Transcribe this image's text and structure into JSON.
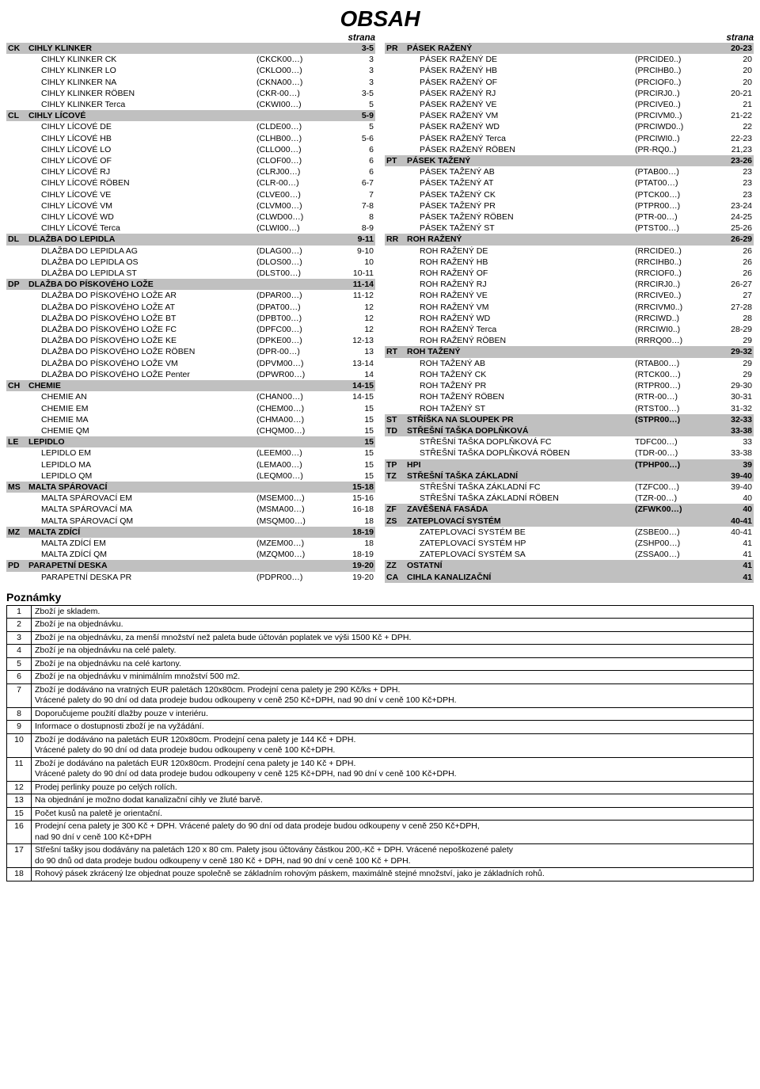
{
  "title": "OBSAH",
  "strana_label": "strana",
  "left": [
    {
      "t": "s",
      "code": "CK",
      "name": "CIHLY KLINKER",
      "ref": "",
      "page": "3-5"
    },
    {
      "t": "i",
      "name": "CIHLY KLINKER CK",
      "ref": "(CKCK00…)",
      "page": "3"
    },
    {
      "t": "i",
      "name": "CIHLY KLINKER LO",
      "ref": "(CKLO00…)",
      "page": "3"
    },
    {
      "t": "i",
      "name": "CIHLY KLINKER NA",
      "ref": "(CKNA00…)",
      "page": "3"
    },
    {
      "t": "i",
      "name": "CIHLY KLINKER RÖBEN",
      "ref": "(CKR-00…)",
      "page": "3-5"
    },
    {
      "t": "i",
      "name": "CIHLY KLINKER Terca",
      "ref": "(CKWI00…)",
      "page": "5"
    },
    {
      "t": "s",
      "code": "CL",
      "name": "CIHLY LÍCOVÉ",
      "ref": "",
      "page": "5-9"
    },
    {
      "t": "i",
      "name": "CIHLY LÍCOVÉ DE",
      "ref": "(CLDE00…)",
      "page": "5"
    },
    {
      "t": "i",
      "name": "CIHLY LÍCOVÉ HB",
      "ref": "(CLHB00…)",
      "page": "5-6"
    },
    {
      "t": "i",
      "name": "CIHLY LÍCOVÉ LO",
      "ref": "(CLLO00…)",
      "page": "6"
    },
    {
      "t": "i",
      "name": "CIHLY LÍCOVÉ OF",
      "ref": "(CLOF00…)",
      "page": "6"
    },
    {
      "t": "i",
      "name": "CIHLY LÍCOVÉ RJ",
      "ref": "(CLRJ00…)",
      "page": "6"
    },
    {
      "t": "i",
      "name": "CIHLY LÍCOVÉ RÖBEN",
      "ref": "(CLR-00…)",
      "page": "6-7"
    },
    {
      "t": "i",
      "name": "CIHLY LÍCOVÉ VE",
      "ref": "(CLVE00…)",
      "page": "7"
    },
    {
      "t": "i",
      "name": "CIHLY LÍCOVÉ VM",
      "ref": "(CLVM00…)",
      "page": "7-8"
    },
    {
      "t": "i",
      "name": "CIHLY LÍCOVÉ WD",
      "ref": "(CLWD00…)",
      "page": "8"
    },
    {
      "t": "i",
      "name": "CIHLY LÍCOVÉ Terca",
      "ref": "(CLWI00…)",
      "page": "8-9"
    },
    {
      "t": "s",
      "code": "DL",
      "name": "DLAŽBA DO LEPIDLA",
      "ref": "",
      "page": "9-11"
    },
    {
      "t": "i",
      "name": "DLAŽBA DO LEPIDLA AG",
      "ref": "(DLAG00…)",
      "page": "9-10"
    },
    {
      "t": "i",
      "name": "DLAŽBA DO LEPIDLA OS",
      "ref": "(DLOS00…)",
      "page": "10"
    },
    {
      "t": "i",
      "name": "DLAŽBA DO LEPIDLA ST",
      "ref": "(DLST00…)",
      "page": "10-11"
    },
    {
      "t": "s",
      "code": "DP",
      "name": "DLAŽBA DO PÍSKOVÉHO LOŽE",
      "ref": "",
      "page": "11-14"
    },
    {
      "t": "i",
      "name": "DLAŽBA DO PÍSKOVÉHO LOŽE AR",
      "ref": "(DPAR00…)",
      "page": "11-12"
    },
    {
      "t": "i",
      "name": "DLAŽBA DO PÍSKOVÉHO LOŽE AT",
      "ref": "(DPAT00…)",
      "page": "12"
    },
    {
      "t": "i",
      "name": "DLAŽBA DO PÍSKOVÉHO LOŽE BT",
      "ref": "(DPBT00…)",
      "page": "12"
    },
    {
      "t": "i",
      "name": "DLAŽBA DO PÍSKOVÉHO LOŽE FC",
      "ref": "(DPFC00…)",
      "page": "12"
    },
    {
      "t": "i",
      "name": "DLAŽBA DO PÍSKOVÉHO LOŽE KE",
      "ref": "(DPKE00…)",
      "page": "12-13"
    },
    {
      "t": "i",
      "name": "DLAŽBA DO PÍSKOVÉHO LOŽE RÖBEN",
      "ref": "(DPR-00…)",
      "page": "13"
    },
    {
      "t": "i",
      "name": "DLAŽBA DO PÍSKOVÉHO LOŽE VM",
      "ref": "(DPVM00…)",
      "page": "13-14"
    },
    {
      "t": "i",
      "name": "DLAŽBA DO PÍSKOVÉHO LOŽE Penter",
      "ref": "(DPWR00…)",
      "page": "14"
    },
    {
      "t": "s",
      "code": "CH",
      "name": "CHEMIE",
      "ref": "",
      "page": "14-15"
    },
    {
      "t": "i",
      "name": "CHEMIE AN",
      "ref": "(CHAN00…)",
      "page": "14-15"
    },
    {
      "t": "i",
      "name": "CHEMIE EM",
      "ref": "(CHEM00…)",
      "page": "15"
    },
    {
      "t": "i",
      "name": "CHEMIE MA",
      "ref": "(CHMA00…)",
      "page": "15"
    },
    {
      "t": "i",
      "name": "CHEMIE QM",
      "ref": "(CHQM00…)",
      "page": "15"
    },
    {
      "t": "s",
      "code": "LE",
      "name": "LEPIDLO",
      "ref": "",
      "page": "15"
    },
    {
      "t": "i",
      "name": "LEPIDLO EM",
      "ref": "(LEEM00…)",
      "page": "15"
    },
    {
      "t": "i",
      "name": "LEPIDLO MA",
      "ref": "(LEMA00…)",
      "page": "15"
    },
    {
      "t": "i",
      "name": "LEPIDLO QM",
      "ref": "(LEQM00…)",
      "page": "15"
    },
    {
      "t": "s",
      "code": "MS",
      "name": "MALTA SPÁROVACÍ",
      "ref": "",
      "page": "15-18"
    },
    {
      "t": "i",
      "name": "MALTA SPÁROVACÍ EM",
      "ref": "(MSEM00…)",
      "page": "15-16"
    },
    {
      "t": "i",
      "name": "MALTA SPÁROVACÍ MA",
      "ref": "(MSMA00…)",
      "page": "16-18"
    },
    {
      "t": "i",
      "name": "MALTA SPÁROVACÍ QM",
      "ref": "(MSQM00…)",
      "page": "18"
    },
    {
      "t": "s",
      "code": "MZ",
      "name": "MALTA ZDÍCÍ",
      "ref": "",
      "page": "18-19"
    },
    {
      "t": "i",
      "name": "MALTA ZDÍCÍ EM",
      "ref": "(MZEM00…)",
      "page": "18"
    },
    {
      "t": "i",
      "name": "MALTA ZDÍCÍ QM",
      "ref": "(MZQM00…)",
      "page": "18-19"
    },
    {
      "t": "s",
      "code": "PD",
      "name": "PARAPETNÍ DESKA",
      "ref": "",
      "page": "19-20"
    },
    {
      "t": "i",
      "name": "PARAPETNÍ DESKA PR",
      "ref": "(PDPR00…)",
      "page": "19-20"
    }
  ],
  "right": [
    {
      "t": "s",
      "code": "PR",
      "name": "PÁSEK RAŽENÝ",
      "ref": "",
      "page": "20-23"
    },
    {
      "t": "i",
      "name": "PÁSEK RAŽENÝ DE",
      "ref": "(PRCIDE0..)",
      "page": "20"
    },
    {
      "t": "i",
      "name": "PÁSEK RAŽENÝ HB",
      "ref": "(PRCIHB0..)",
      "page": "20"
    },
    {
      "t": "i",
      "name": "PÁSEK RAŽENÝ OF",
      "ref": "(PRCIOF0..)",
      "page": "20"
    },
    {
      "t": "i",
      "name": "PÁSEK RAŽENÝ RJ",
      "ref": "(PRCIRJ0..)",
      "page": "20-21"
    },
    {
      "t": "i",
      "name": "PÁSEK RAŽENÝ VE",
      "ref": "(PRCIVE0..)",
      "page": "21"
    },
    {
      "t": "i",
      "name": "PÁSEK RAŽENÝ VM",
      "ref": "(PRCIVM0..)",
      "page": "21-22"
    },
    {
      "t": "i",
      "name": "PÁSEK RAŽENÝ WD",
      "ref": "(PRCIWD0..)",
      "page": "22"
    },
    {
      "t": "i",
      "name": "PÁSEK RAŽENÝ Terca",
      "ref": "(PRCIWI0..)",
      "page": "22-23"
    },
    {
      "t": "i",
      "name": "PÁSEK RAŽENÝ RÖBEN",
      "ref": "(PR-RQ0..)",
      "page": "21,23"
    },
    {
      "t": "s",
      "code": "PT",
      "name": "PÁSEK TAŽENÝ",
      "ref": "",
      "page": "23-26"
    },
    {
      "t": "i",
      "name": "PÁSEK TAŽENÝ AB",
      "ref": "(PTAB00…)",
      "page": "23"
    },
    {
      "t": "i",
      "name": "PÁSEK TAŽENÝ AT",
      "ref": "(PTAT00…)",
      "page": "23"
    },
    {
      "t": "i",
      "name": "PÁSEK TAŽENÝ CK",
      "ref": "(PTCK00…)",
      "page": "23"
    },
    {
      "t": "i",
      "name": "PÁSEK TAŽENÝ PR",
      "ref": "(PTPR00…)",
      "page": "23-24"
    },
    {
      "t": "i",
      "name": "PÁSEK TAŽENÝ RÖBEN",
      "ref": "(PTR-00…)",
      "page": "24-25"
    },
    {
      "t": "i",
      "name": "PÁSEK TAŽENÝ ST",
      "ref": "(PTST00…)",
      "page": "25-26"
    },
    {
      "t": "s",
      "code": "RR",
      "name": "ROH RAŽENÝ",
      "ref": "",
      "page": "26-29"
    },
    {
      "t": "i",
      "name": "ROH RAŽENÝ DE",
      "ref": "(RRCIDE0..)",
      "page": "26"
    },
    {
      "t": "i",
      "name": "ROH RAŽENÝ HB",
      "ref": "(RRCIHB0..)",
      "page": "26"
    },
    {
      "t": "i",
      "name": "ROH RAŽENÝ OF",
      "ref": "(RRCIOF0..)",
      "page": "26"
    },
    {
      "t": "i",
      "name": "ROH RAŽENÝ RJ",
      "ref": "(RRCIRJ0..)",
      "page": "26-27"
    },
    {
      "t": "i",
      "name": "ROH RAŽENÝ VE",
      "ref": "(RRCIVE0..)",
      "page": "27"
    },
    {
      "t": "i",
      "name": "ROH RAŽENÝ VM",
      "ref": "(RRCIVM0..)",
      "page": "27-28"
    },
    {
      "t": "i",
      "name": "ROH RAŽENÝ WD",
      "ref": "(RRCIWD..)",
      "page": "28"
    },
    {
      "t": "i",
      "name": "ROH RAŽENÝ Terca",
      "ref": "(RRCIWI0..)",
      "page": "28-29"
    },
    {
      "t": "i",
      "name": "ROH RAŽENÝ RÖBEN",
      "ref": "(RRRQ00…)",
      "page": "29"
    },
    {
      "t": "s",
      "code": "RT",
      "name": "ROH TAŽENÝ",
      "ref": "",
      "page": "29-32"
    },
    {
      "t": "i",
      "name": "ROH TAŽENÝ AB",
      "ref": "(RTAB00…)",
      "page": "29"
    },
    {
      "t": "i",
      "name": "ROH TAŽENÝ CK",
      "ref": "(RTCK00…)",
      "page": "29"
    },
    {
      "t": "i",
      "name": "ROH TAŽENÝ PR",
      "ref": "(RTPR00…)",
      "page": "29-30"
    },
    {
      "t": "i",
      "name": "ROH TAŽENÝ RÖBEN",
      "ref": "(RTR-00…)",
      "page": "30-31"
    },
    {
      "t": "i",
      "name": "ROH TAŽENÝ ST",
      "ref": "(RTST00…)",
      "page": "31-32"
    },
    {
      "t": "s",
      "code": "ST",
      "name": "STŘÍŠKA NA SLOUPEK PR",
      "ref": "(STPR00…)",
      "page": "32-33"
    },
    {
      "t": "s",
      "code": "TD",
      "name": "STŘEŠNÍ TAŠKA DOPLŇKOVÁ",
      "ref": "",
      "page": "33-38"
    },
    {
      "t": "i",
      "name": "STŘEŠNÍ TAŠKA DOPLŇKOVÁ FC",
      "ref": "TDFC00…)",
      "page": "33"
    },
    {
      "t": "i",
      "name": "STŘEŠNÍ TAŠKA DOPLŇKOVÁ RÖBEN",
      "ref": "(TDR-00…)",
      "page": "33-38"
    },
    {
      "t": "s",
      "code": "TP",
      "name": "HPI",
      "ref": "(TPHP00…)",
      "page": "39"
    },
    {
      "t": "s",
      "code": "TZ",
      "name": "STŘEŠNÍ TAŠKA ZÁKLADNÍ",
      "ref": "",
      "page": "39-40"
    },
    {
      "t": "i",
      "name": "STŘEŠNÍ TAŠKA ZÁKLADNÍ FC",
      "ref": "(TZFC00…)",
      "page": "39-40"
    },
    {
      "t": "i",
      "name": "STŘEŠNÍ TAŠKA ZÁKLADNÍ RÖBEN",
      "ref": "(TZR-00…)",
      "page": "40"
    },
    {
      "t": "s",
      "code": "ZF",
      "name": "ZAVĚŠENÁ FASÁDA",
      "ref": "(ZFWK00…)",
      "page": "40"
    },
    {
      "t": "s",
      "code": "ZS",
      "name": "ZATEPLOVACÍ SYSTÉM",
      "ref": "",
      "page": "40-41"
    },
    {
      "t": "i",
      "name": "ZATEPLOVACÍ SYSTÉM BE",
      "ref": "(ZSBE00…)",
      "page": "40-41"
    },
    {
      "t": "i",
      "name": "ZATEPLOVACÍ SYSTÉM HP",
      "ref": "(ZSHP00…)",
      "page": "41"
    },
    {
      "t": "i",
      "name": "ZATEPLOVACÍ SYSTÉM SA",
      "ref": "(ZSSA00…)",
      "page": "41"
    },
    {
      "t": "s",
      "code": "ZZ",
      "name": "OSTATNÍ",
      "ref": "",
      "page": "41"
    },
    {
      "t": "s",
      "code": "CA",
      "name": "CIHLA KANALIZAČNÍ",
      "ref": "",
      "page": "41"
    }
  ],
  "notes_title": "Poznámky",
  "notes": [
    {
      "n": "1",
      "txt": "Zboží je skladem."
    },
    {
      "n": "2",
      "txt": "Zboží je na objednávku."
    },
    {
      "n": "3",
      "txt": "Zboží je na objednávku, za menší množství než paleta bude účtován poplatek ve výši 1500 Kč + DPH."
    },
    {
      "n": "4",
      "txt": "Zboží je na objednávku na celé palety."
    },
    {
      "n": "5",
      "txt": "Zboží je na objednávku na celé kartony."
    },
    {
      "n": "6",
      "txt": "Zboží je na objednávku v minimálním množství 500 m2."
    },
    {
      "n": "7",
      "txt": "Zboží je dodáváno na vratných EUR paletách 120x80cm. Prodejní cena palety je 290 Kč/ks + DPH.\nVrácené palety do 90 dní od data prodeje budou odkoupeny v ceně 250 Kč+DPH, nad 90 dní v ceně 100 Kč+DPH."
    },
    {
      "n": "8",
      "txt": "Doporučujeme použití dlažby pouze v interiéru."
    },
    {
      "n": "9",
      "txt": "Informace o dostupnosti zboží je na vyžádání."
    },
    {
      "n": "10",
      "txt": "Zboží je dodáváno na paletách EUR 120x80cm. Prodejní cena palety je 144 Kč + DPH.\nVrácené palety do 90 dní od data prodeje budou odkoupeny v ceně 100 Kč+DPH."
    },
    {
      "n": "11",
      "txt": "Zboží je dodáváno na paletách EUR 120x80cm. Prodejní cena palety je 140 Kč + DPH.\nVrácené palety do 90 dní od data prodeje budou odkoupeny v ceně 125 Kč+DPH, nad 90 dní v ceně 100 Kč+DPH."
    },
    {
      "n": "12",
      "txt": "Prodej perlinky pouze po celých rolích."
    },
    {
      "n": "13",
      "txt": "Na objednání je možno dodat kanalizační cihly ve žluté barvě."
    },
    {
      "n": "15",
      "txt": "Počet kusů na paletě je orientační."
    },
    {
      "n": "16",
      "txt": "Prodejní cena palety je 300 Kč + DPH. Vrácené palety do 90 dní od data prodeje budou odkoupeny v ceně 250 Kč+DPH,\nnad 90 dní v ceně 100 Kč+DPH"
    },
    {
      "n": "17",
      "txt": "Střešní tašky jsou dodávány na paletách 120 x 80 cm. Palety jsou účtovány částkou 200,-Kč + DPH. Vrácené nepoškozené palety\ndo 90 dnů od data prodeje budou odkoupeny v ceně 180 Kč + DPH, nad 90 dní v ceně 100 Kč + DPH."
    },
    {
      "n": "18",
      "txt": "Rohový pásek zkrácený lze objednat pouze společně se základním rohovým páskem, maximálně stejné množství, jako je základních rohů."
    }
  ]
}
